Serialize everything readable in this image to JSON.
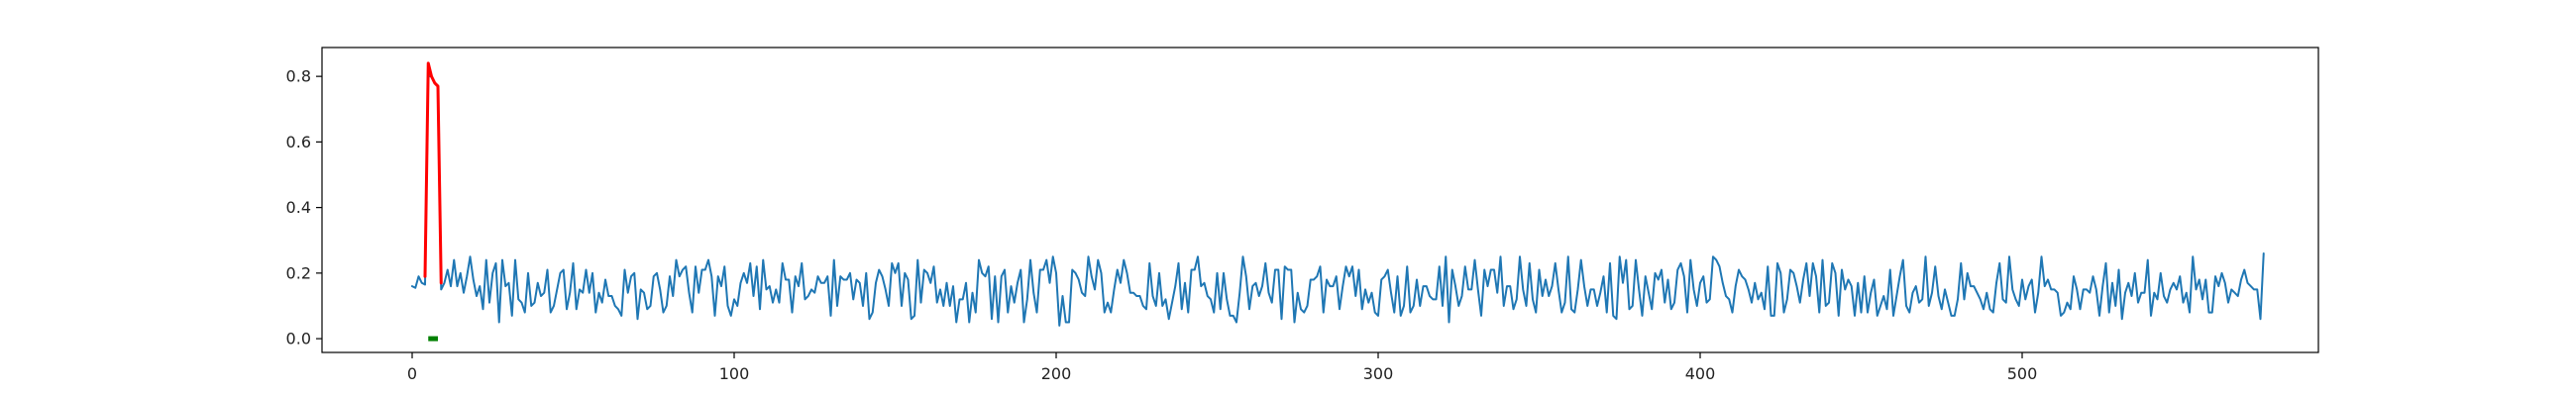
{
  "chart_data": {
    "type": "line",
    "title": "",
    "xlabel": "",
    "ylabel": "",
    "xlim": [
      -28,
      592
    ],
    "ylim": [
      -0.042,
      0.888
    ],
    "xticks": [
      0,
      100,
      200,
      300,
      400,
      500
    ],
    "yticks": [
      0.0,
      0.2,
      0.4,
      0.6,
      0.8
    ],
    "xtick_labels": [
      "0",
      "100",
      "200",
      "300",
      "400",
      "500"
    ],
    "ytick_labels": [
      "0.0",
      "0.2",
      "0.4",
      "0.6",
      "0.8"
    ],
    "grid": false,
    "series": [
      {
        "color": "#1f77b4",
        "x_start": 0,
        "values": [
          0.16,
          0.155,
          0.19,
          0.17,
          0.165,
          0.8,
          0.8,
          0.78,
          0.77,
          0.15,
          0.17,
          0.21,
          0.16,
          0.24,
          0.16,
          0.2,
          0.14,
          0.19,
          0.25,
          0.18,
          0.13,
          0.16,
          0.09,
          0.24,
          0.11,
          0.2,
          0.23,
          0.05,
          0.24,
          0.16,
          0.17,
          0.07,
          0.24,
          0.12,
          0.11,
          0.08,
          0.2,
          0.1,
          0.11,
          0.17,
          0.13,
          0.14,
          0.21,
          0.08,
          0.1,
          0.15,
          0.2,
          0.21,
          0.09,
          0.14,
          0.23,
          0.09,
          0.15,
          0.14,
          0.21,
          0.14,
          0.2,
          0.08,
          0.14,
          0.11,
          0.18,
          0.13,
          0.13,
          0.1,
          0.09,
          0.07,
          0.21,
          0.14,
          0.19,
          0.2,
          0.06,
          0.15,
          0.14,
          0.09,
          0.1,
          0.19,
          0.2,
          0.15,
          0.08,
          0.1,
          0.19,
          0.13,
          0.24,
          0.19,
          0.21,
          0.22,
          0.14,
          0.08,
          0.22,
          0.14,
          0.21,
          0.21,
          0.24,
          0.19,
          0.07,
          0.19,
          0.16,
          0.22,
          0.1,
          0.07,
          0.12,
          0.1,
          0.17,
          0.2,
          0.17,
          0.23,
          0.13,
          0.22,
          0.09,
          0.24,
          0.15,
          0.16,
          0.11,
          0.15,
          0.11,
          0.23,
          0.18,
          0.18,
          0.08,
          0.19,
          0.16,
          0.23,
          0.12,
          0.13,
          0.15,
          0.14,
          0.19,
          0.17,
          0.17,
          0.19,
          0.07,
          0.24,
          0.1,
          0.19,
          0.18,
          0.18,
          0.2,
          0.12,
          0.18,
          0.17,
          0.1,
          0.2,
          0.06,
          0.08,
          0.17,
          0.21,
          0.19,
          0.15,
          0.1,
          0.23,
          0.2,
          0.23,
          0.1,
          0.2,
          0.18,
          0.06,
          0.07,
          0.24,
          0.11,
          0.21,
          0.2,
          0.17,
          0.22,
          0.11,
          0.15,
          0.1,
          0.17,
          0.1,
          0.16,
          0.05,
          0.12,
          0.12,
          0.17,
          0.05,
          0.14,
          0.08,
          0.24,
          0.2,
          0.19,
          0.22,
          0.06,
          0.19,
          0.05,
          0.19,
          0.21,
          0.08,
          0.16,
          0.11,
          0.17,
          0.21,
          0.05,
          0.12,
          0.24,
          0.14,
          0.08,
          0.21,
          0.21,
          0.24,
          0.17,
          0.25,
          0.2,
          0.04,
          0.13,
          0.05,
          0.05,
          0.21,
          0.2,
          0.18,
          0.14,
          0.13,
          0.25,
          0.19,
          0.15,
          0.24,
          0.2,
          0.08,
          0.11,
          0.08,
          0.15,
          0.21,
          0.17,
          0.24,
          0.2,
          0.14,
          0.14,
          0.13,
          0.13,
          0.1,
          0.09,
          0.23,
          0.13,
          0.1,
          0.2,
          0.1,
          0.12,
          0.06,
          0.11,
          0.16,
          0.23,
          0.09,
          0.17,
          0.08,
          0.21,
          0.21,
          0.25,
          0.16,
          0.17,
          0.13,
          0.12,
          0.08,
          0.2,
          0.09,
          0.2,
          0.12,
          0.07,
          0.07,
          0.05,
          0.14,
          0.25,
          0.19,
          0.09,
          0.16,
          0.17,
          0.13,
          0.16,
          0.23,
          0.14,
          0.11,
          0.21,
          0.21,
          0.06,
          0.22,
          0.21,
          0.21,
          0.05,
          0.14,
          0.09,
          0.08,
          0.1,
          0.18,
          0.18,
          0.19,
          0.22,
          0.08,
          0.18,
          0.16,
          0.16,
          0.19,
          0.09,
          0.16,
          0.22,
          0.19,
          0.22,
          0.13,
          0.21,
          0.09,
          0.15,
          0.11,
          0.14,
          0.08,
          0.07,
          0.18,
          0.19,
          0.21,
          0.14,
          0.08,
          0.19,
          0.07,
          0.1,
          0.22,
          0.08,
          0.1,
          0.18,
          0.1,
          0.16,
          0.16,
          0.13,
          0.12,
          0.12,
          0.22,
          0.1,
          0.25,
          0.05,
          0.21,
          0.16,
          0.1,
          0.13,
          0.22,
          0.15,
          0.15,
          0.24,
          0.15,
          0.07,
          0.21,
          0.16,
          0.21,
          0.21,
          0.14,
          0.25,
          0.1,
          0.16,
          0.16,
          0.09,
          0.12,
          0.25,
          0.15,
          0.1,
          0.23,
          0.12,
          0.08,
          0.21,
          0.13,
          0.18,
          0.13,
          0.16,
          0.23,
          0.15,
          0.08,
          0.11,
          0.25,
          0.09,
          0.08,
          0.15,
          0.24,
          0.16,
          0.1,
          0.15,
          0.15,
          0.1,
          0.14,
          0.19,
          0.08,
          0.23,
          0.07,
          0.06,
          0.25,
          0.17,
          0.24,
          0.09,
          0.1,
          0.24,
          0.15,
          0.07,
          0.19,
          0.14,
          0.09,
          0.2,
          0.18,
          0.21,
          0.11,
          0.18,
          0.09,
          0.11,
          0.21,
          0.23,
          0.19,
          0.08,
          0.24,
          0.15,
          0.1,
          0.17,
          0.19,
          0.11,
          0.12,
          0.25,
          0.24,
          0.22,
          0.17,
          0.13,
          0.12,
          0.08,
          0.16,
          0.21,
          0.19,
          0.18,
          0.15,
          0.11,
          0.17,
          0.12,
          0.14,
          0.09,
          0.22,
          0.07,
          0.07,
          0.23,
          0.2,
          0.08,
          0.12,
          0.21,
          0.2,
          0.16,
          0.11,
          0.18,
          0.23,
          0.13,
          0.23,
          0.19,
          0.08,
          0.24,
          0.1,
          0.11,
          0.23,
          0.2,
          0.07,
          0.21,
          0.15,
          0.18,
          0.16,
          0.07,
          0.17,
          0.08,
          0.19,
          0.08,
          0.14,
          0.18,
          0.07,
          0.1,
          0.13,
          0.09,
          0.21,
          0.07,
          0.13,
          0.19,
          0.24,
          0.1,
          0.08,
          0.14,
          0.16,
          0.11,
          0.12,
          0.25,
          0.1,
          0.14,
          0.22,
          0.13,
          0.09,
          0.15,
          0.11,
          0.07,
          0.07,
          0.12,
          0.23,
          0.12,
          0.2,
          0.16,
          0.16,
          0.14,
          0.12,
          0.09,
          0.14,
          0.09,
          0.08,
          0.17,
          0.23,
          0.12,
          0.11,
          0.25,
          0.15,
          0.12,
          0.1,
          0.18,
          0.12,
          0.16,
          0.18,
          0.08,
          0.14,
          0.25,
          0.16,
          0.18,
          0.15,
          0.15,
          0.14,
          0.07,
          0.08,
          0.11,
          0.09,
          0.19,
          0.15,
          0.09,
          0.15,
          0.15,
          0.14,
          0.19,
          0.15,
          0.07,
          0.16,
          0.23,
          0.08,
          0.17,
          0.1,
          0.21,
          0.06,
          0.14,
          0.17,
          0.13,
          0.2,
          0.11,
          0.14,
          0.14,
          0.24,
          0.07,
          0.14,
          0.12,
          0.2,
          0.13,
          0.11,
          0.15,
          0.17,
          0.15,
          0.19,
          0.11,
          0.14,
          0.08,
          0.25,
          0.15,
          0.18,
          0.12,
          0.18,
          0.08,
          0.08,
          0.19,
          0.16,
          0.2,
          0.17,
          0.11,
          0.15,
          0.14,
          0.13,
          0.18,
          0.21,
          0.17,
          0.16,
          0.15,
          0.15,
          0.06,
          0.26
        ]
      },
      {
        "color": "#ff0000",
        "x": [
          4,
          5,
          6,
          7,
          8,
          9
        ],
        "values": [
          0.19,
          0.84,
          0.8,
          0.78,
          0.77,
          0.17
        ]
      },
      {
        "color": "#008000",
        "x": [
          5,
          6,
          7,
          8
        ],
        "values": [
          0.0,
          0.0,
          0.0,
          0.0
        ]
      }
    ]
  }
}
